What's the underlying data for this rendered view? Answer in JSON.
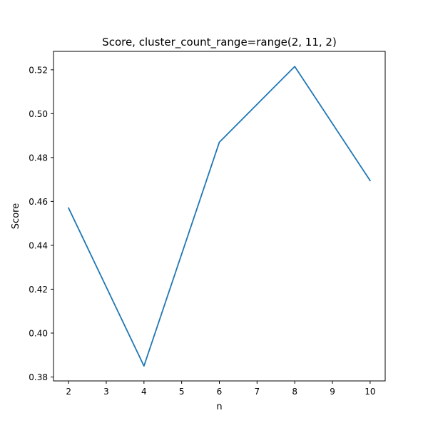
{
  "chart_data": {
    "type": "line",
    "title": "Score, cluster_count_range=range(2, 11, 2)",
    "xlabel": "n",
    "ylabel": "Score",
    "x": [
      2,
      4,
      6,
      8,
      10
    ],
    "series": [
      {
        "values": [
          0.457,
          0.385,
          0.487,
          0.5215,
          0.4695
        ],
        "color": "#1f77b4"
      }
    ],
    "xlim": [
      1.6,
      10.4
    ],
    "ylim": [
      0.3782,
      0.5284
    ],
    "xticks": [
      2,
      3,
      4,
      5,
      6,
      7,
      8,
      9,
      10
    ],
    "xtick_labels": [
      "2",
      "3",
      "4",
      "5",
      "6",
      "7",
      "8",
      "9",
      "10"
    ],
    "yticks": [
      0.38,
      0.4,
      0.42,
      0.44,
      0.46,
      0.48,
      0.5,
      0.52
    ],
    "ytick_labels": [
      "0.38",
      "0.40",
      "0.42",
      "0.44",
      "0.46",
      "0.48",
      "0.50",
      "0.52"
    ],
    "grid": false,
    "legend": false
  }
}
